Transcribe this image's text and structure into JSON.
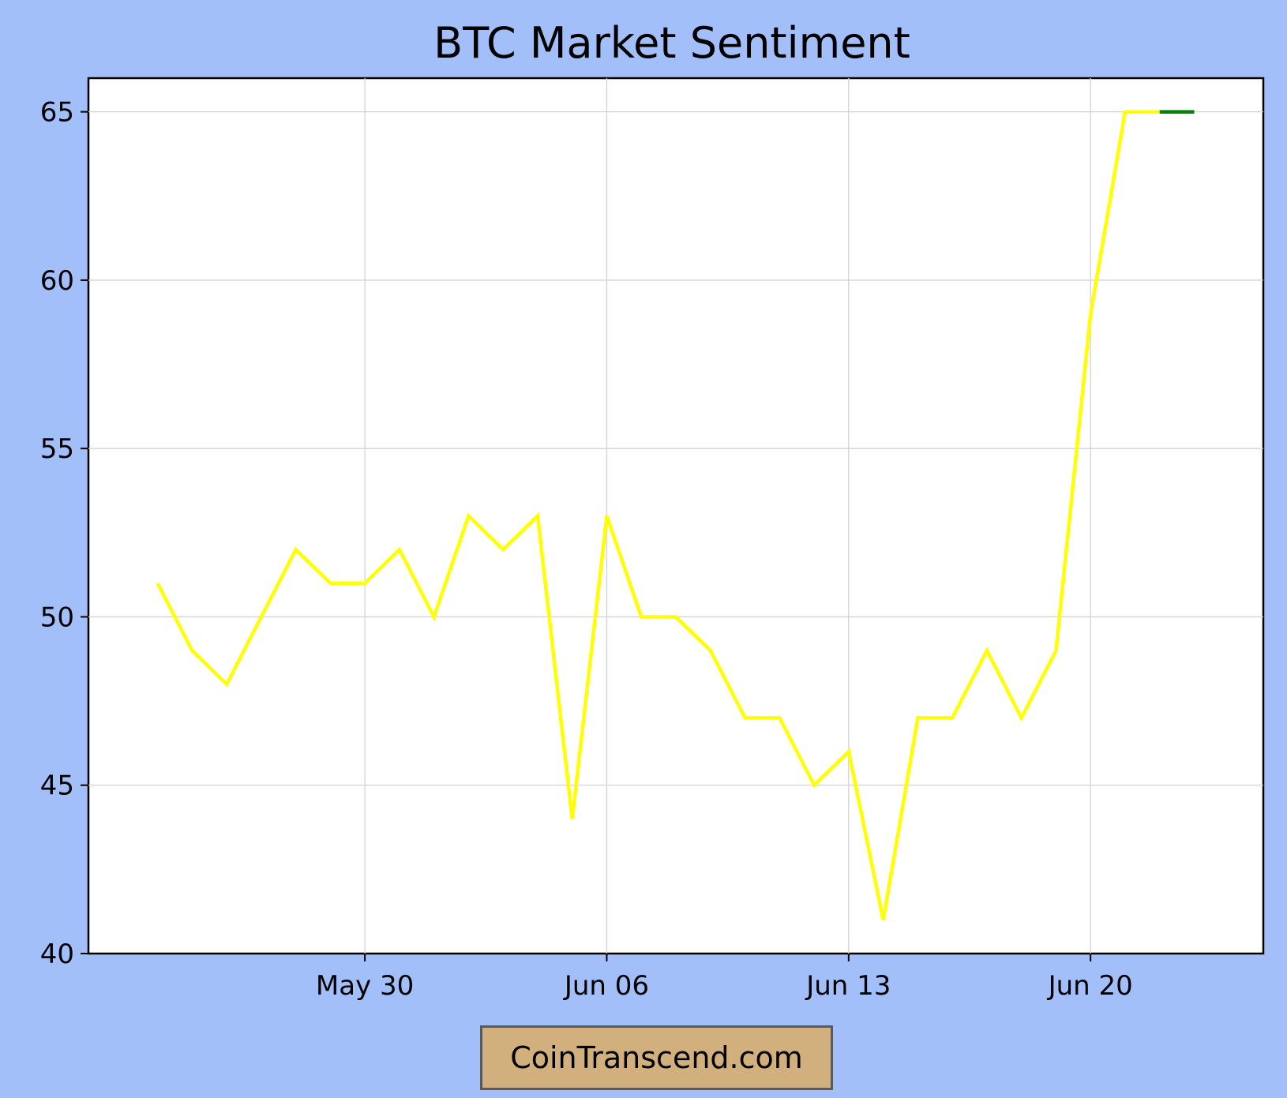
{
  "chart_data": {
    "type": "line",
    "title": "BTC Market Sentiment",
    "xlabel": "",
    "ylabel": "",
    "ylim": [
      40,
      66
    ],
    "xlim": [
      "2025-05-22",
      "2025-06-25"
    ],
    "yticks": [
      40,
      45,
      50,
      55,
      60,
      65
    ],
    "xticks": [
      {
        "date": "2025-05-30",
        "label": "May 30"
      },
      {
        "date": "2025-06-06",
        "label": "Jun 06"
      },
      {
        "date": "2025-06-13",
        "label": "Jun 13"
      },
      {
        "date": "2025-06-20",
        "label": "Jun 20"
      }
    ],
    "grid": true,
    "series": [
      {
        "color": "#ffff00",
        "x": [
          "2025-05-24",
          "2025-05-25",
          "2025-05-26",
          "2025-05-27",
          "2025-05-28",
          "2025-05-29",
          "2025-05-30",
          "2025-05-31",
          "2025-06-01",
          "2025-06-02",
          "2025-06-03",
          "2025-06-04",
          "2025-06-05",
          "2025-06-06",
          "2025-06-07",
          "2025-06-08",
          "2025-06-09",
          "2025-06-10",
          "2025-06-11",
          "2025-06-12",
          "2025-06-13",
          "2025-06-14",
          "2025-06-15",
          "2025-06-16",
          "2025-06-17",
          "2025-06-18",
          "2025-06-19",
          "2025-06-20",
          "2025-06-21",
          "2025-06-22"
        ],
        "values": [
          51,
          49,
          48,
          50,
          52,
          51,
          51,
          52,
          50,
          53,
          52,
          53,
          44,
          53,
          50,
          50,
          49,
          47,
          47,
          45,
          46,
          41,
          47,
          47,
          49,
          47,
          49,
          59,
          65,
          65
        ]
      },
      {
        "color": "#008000",
        "x": [
          "2025-06-22",
          "2025-06-23"
        ],
        "values": [
          65,
          65
        ]
      }
    ]
  },
  "watermark": {
    "text": "CoinTranscend.com"
  }
}
